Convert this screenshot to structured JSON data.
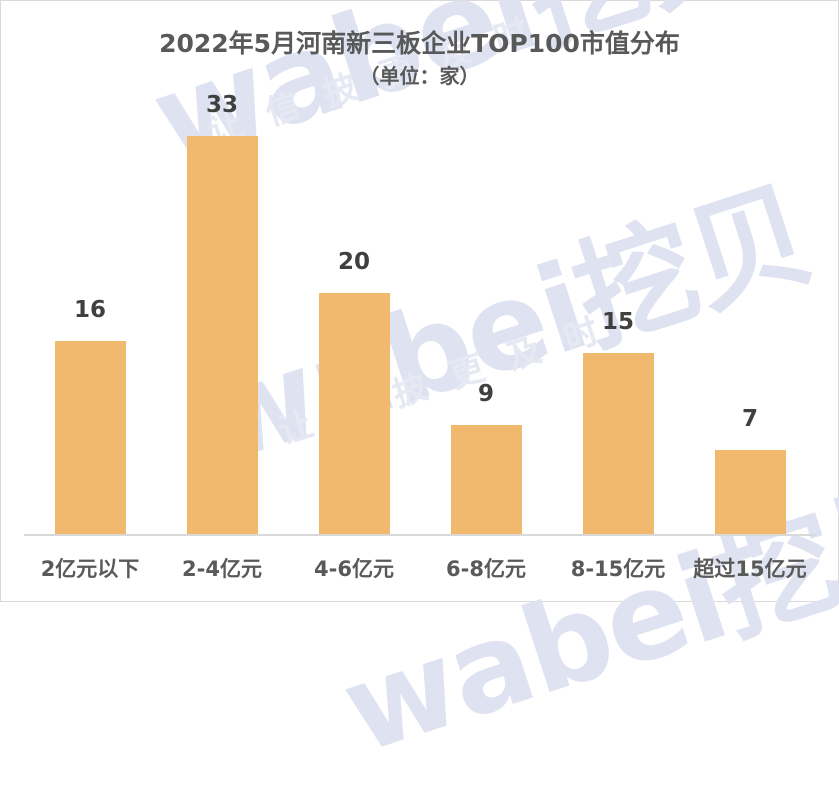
{
  "chart_data": {
    "type": "bar",
    "title": "2022年5月河南新三板企业TOP100市值分布",
    "subtitle": "（单位：家）",
    "xlabel": "",
    "ylabel": "",
    "categories": [
      "2亿元以下",
      "2-4亿元",
      "4-6亿元",
      "6-8亿元",
      "8-15亿元",
      "超过15亿元"
    ],
    "values": [
      16,
      33,
      20,
      9,
      15,
      7
    ],
    "data_labels": [
      "16",
      "33",
      "20",
      "9",
      "15",
      "7"
    ],
    "ylim": [
      0,
      36
    ],
    "grid": false,
    "legend": null,
    "bar_color": "#f0b96e"
  },
  "watermark": {
    "brand": "wabei挖贝",
    "slogan": "让信披更及时"
  }
}
